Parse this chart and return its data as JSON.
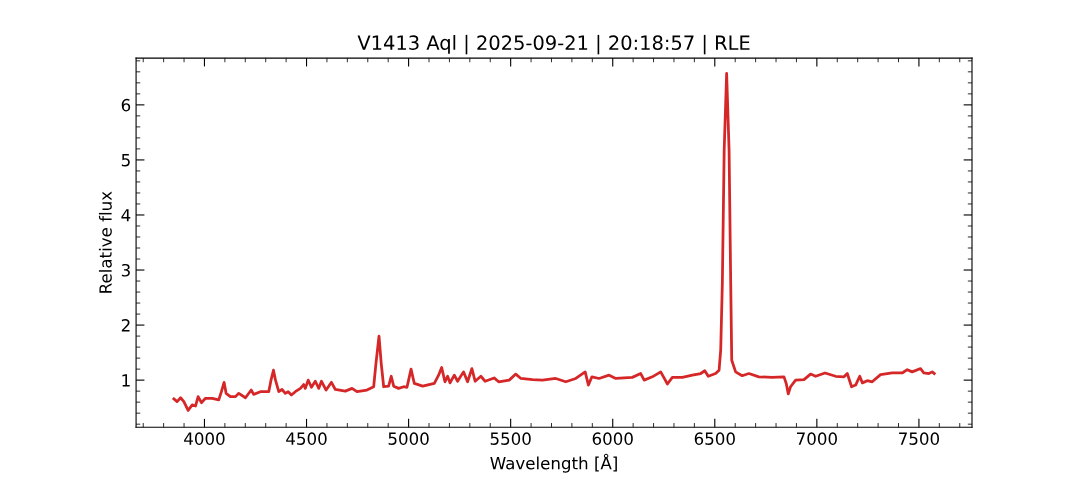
{
  "chart_data": {
    "type": "line",
    "title": "V1413 Aql | 2025-09-21 | 20:18:57 | RLE",
    "xlabel": "Wavelength [Å]",
    "ylabel": "Relative flux",
    "xlim": [
      3665,
      7760
    ],
    "ylim": [
      0.145,
      6.85
    ],
    "xticks": [
      4000,
      4500,
      5000,
      5500,
      6000,
      6500,
      7000,
      7500
    ],
    "yticks": [
      1,
      2,
      3,
      4,
      5,
      6
    ],
    "grid": false,
    "legend": false,
    "line_style": "solid",
    "marker": "none",
    "x": [
      3850,
      3866,
      3883,
      3899,
      3920,
      3940,
      3956,
      3969,
      3985,
      4005,
      4038,
      4070,
      4083,
      4096,
      4106,
      4127,
      4152,
      4168,
      4201,
      4229,
      4241,
      4274,
      4315,
      4326,
      4338,
      4348,
      4364,
      4380,
      4396,
      4410,
      4426,
      4445,
      4470,
      4486,
      4494,
      4508,
      4524,
      4543,
      4560,
      4573,
      4596,
      4622,
      4641,
      4690,
      4723,
      4747,
      4796,
      4829,
      4840,
      4855,
      4866,
      4878,
      4902,
      4915,
      4927,
      4951,
      4976,
      4992,
      5000,
      5012,
      5028,
      5069,
      5126,
      5147,
      5162,
      5178,
      5191,
      5203,
      5224,
      5240,
      5269,
      5289,
      5310,
      5326,
      5354,
      5375,
      5419,
      5441,
      5493,
      5525,
      5550,
      5607,
      5656,
      5721,
      5770,
      5819,
      5865,
      5881,
      5898,
      5933,
      5982,
      6015,
      6096,
      6137,
      6154,
      6194,
      6235,
      6268,
      6292,
      6341,
      6390,
      6431,
      6451,
      6468,
      6504,
      6521,
      6529,
      6537,
      6546,
      6558,
      6570,
      6578,
      6583,
      6602,
      6634,
      6667,
      6716,
      6781,
      6839,
      6850,
      6860,
      6871,
      6896,
      6937,
      6969,
      6994,
      7040,
      7092,
      7133,
      7149,
      7170,
      7190,
      7210,
      7223,
      7247,
      7271,
      7312,
      7369,
      7418,
      7443,
      7467,
      7508,
      7524,
      7549,
      7565,
      7575
    ],
    "series": [
      {
        "color": "#d62728",
        "values": [
          0.66,
          0.61,
          0.68,
          0.61,
          0.45,
          0.55,
          0.53,
          0.7,
          0.59,
          0.67,
          0.67,
          0.64,
          0.79,
          0.96,
          0.76,
          0.7,
          0.7,
          0.76,
          0.68,
          0.82,
          0.74,
          0.79,
          0.79,
          1.0,
          1.18,
          1.0,
          0.79,
          0.83,
          0.76,
          0.79,
          0.73,
          0.79,
          0.85,
          0.92,
          0.85,
          1.0,
          0.87,
          0.98,
          0.85,
          0.98,
          0.82,
          0.96,
          0.83,
          0.8,
          0.85,
          0.79,
          0.82,
          0.88,
          1.3,
          1.8,
          1.3,
          0.88,
          0.89,
          1.07,
          0.89,
          0.85,
          0.88,
          0.87,
          1.0,
          1.2,
          0.94,
          0.89,
          0.94,
          1.09,
          1.23,
          0.97,
          1.07,
          0.95,
          1.09,
          0.98,
          1.15,
          0.97,
          1.21,
          0.98,
          1.07,
          0.98,
          1.04,
          0.97,
          1.0,
          1.11,
          1.03,
          1.01,
          1.0,
          1.03,
          0.97,
          1.03,
          1.15,
          0.91,
          1.06,
          1.03,
          1.09,
          1.03,
          1.05,
          1.12,
          1.0,
          1.06,
          1.15,
          0.93,
          1.05,
          1.05,
          1.09,
          1.12,
          1.17,
          1.07,
          1.12,
          1.18,
          1.55,
          2.76,
          5.18,
          6.57,
          5.18,
          2.76,
          1.36,
          1.15,
          1.08,
          1.12,
          1.06,
          1.05,
          1.06,
          0.94,
          0.75,
          0.88,
          1.0,
          1.01,
          1.11,
          1.07,
          1.13,
          1.07,
          1.06,
          1.12,
          0.88,
          0.91,
          1.07,
          0.95,
          0.99,
          0.97,
          1.1,
          1.13,
          1.13,
          1.19,
          1.15,
          1.21,
          1.13,
          1.12,
          1.15,
          1.12
        ]
      }
    ]
  }
}
